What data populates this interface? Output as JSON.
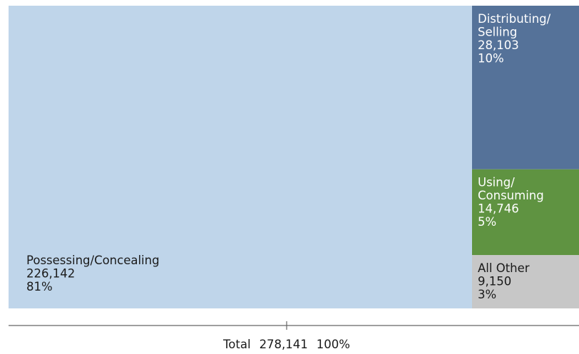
{
  "chart_data": {
    "type": "treemap",
    "title": "",
    "categories": [
      "Possessing/Concealing",
      "Distributing/Selling",
      "Using/Consuming",
      "All Other"
    ],
    "nodes": [
      {
        "key": "possessing",
        "label_lines": [
          "Possessing/Concealing"
        ],
        "value": 226142,
        "value_text": "226,142",
        "percent": 81,
        "percent_text": "81%",
        "color": "#bfd5ea",
        "text_color": "#1a1a1a"
      },
      {
        "key": "distributing",
        "label_lines": [
          "Distributing/",
          "Selling"
        ],
        "value": 28103,
        "value_text": "28,103",
        "percent": 10,
        "percent_text": "10%",
        "color": "#557299",
        "text_color": "#ffffff"
      },
      {
        "key": "using",
        "label_lines": [
          "Using/",
          "Consuming"
        ],
        "value": 14746,
        "value_text": "14,746",
        "percent": 5,
        "percent_text": "5%",
        "color": "#5f9341",
        "text_color": "#ffffff"
      },
      {
        "key": "other",
        "label_lines": [
          "All Other"
        ],
        "value": 9150,
        "value_text": "9,150",
        "percent": 3,
        "percent_text": "3%",
        "color": "#c7c7c7",
        "text_color": "#1a1a1a"
      }
    ],
    "total": {
      "label": "Total",
      "value": 278141,
      "value_text": "278,141",
      "percent_text": "100%"
    },
    "colors": {
      "axis": "#666666",
      "total_text": "#1a1a1a"
    }
  }
}
